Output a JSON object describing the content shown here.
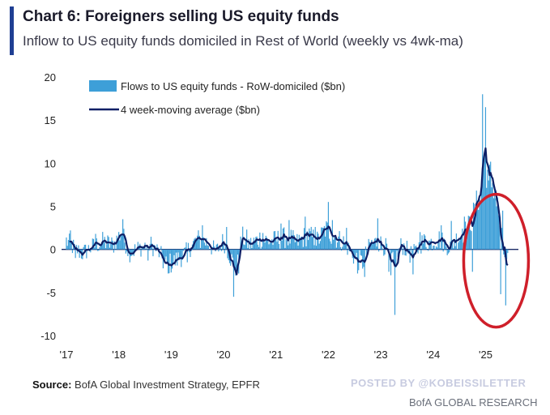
{
  "header": {
    "title": "Chart 6: Foreigners selling US equity funds",
    "subtitle": "Inflow to US equity funds domiciled in Rest of World (weekly vs 4wk-ma)"
  },
  "footer": {
    "source_label": "Source:",
    "source_text": " BofA Global Investment Strategy, EPFR",
    "watermark": "POSTED BY @KOBEISSILETTER",
    "brand": "BofA GLOBAL RESEARCH"
  },
  "colors": {
    "bars": "#3d9fd8",
    "line": "#0d1f66",
    "highlight_circle": "#cf1f2a",
    "accent": "#1f3f93"
  },
  "chart_data": {
    "type": "bar",
    "ylim": [
      -10,
      20
    ],
    "yticks": [
      20,
      15,
      10,
      5,
      0,
      -5,
      -10
    ],
    "xlim": [
      2017.0,
      2025.75
    ],
    "xticks": [
      {
        "label": "'17",
        "x": 2017.0
      },
      {
        "label": "'18",
        "x": 2018.0
      },
      {
        "label": "'19",
        "x": 2019.0
      },
      {
        "label": "'20",
        "x": 2020.0
      },
      {
        "label": "'21",
        "x": 2021.0
      },
      {
        "label": "'22",
        "x": 2022.0
      },
      {
        "label": "'23",
        "x": 2023.0
      },
      {
        "label": "'24",
        "x": 2024.0
      },
      {
        "label": "'25",
        "x": 2025.0
      }
    ],
    "legend": {
      "placement": "top-left"
    },
    "series": [
      {
        "name": "Flows to US equity funds - RoW-domiciled ($bn)",
        "kind": "bar",
        "weekly": true
      },
      {
        "name": "4 week-moving average ($bn)",
        "kind": "line",
        "smoothing": "4-week moving average"
      }
    ],
    "keypoints": [
      [
        2017.0,
        1.0
      ],
      [
        2017.1,
        0.4
      ],
      [
        2017.3,
        -0.5
      ],
      [
        2017.5,
        0.3
      ],
      [
        2017.7,
        0.9
      ],
      [
        2017.9,
        0.5
      ],
      [
        2018.05,
        2.0
      ],
      [
        2018.2,
        -0.4
      ],
      [
        2018.4,
        0.2
      ],
      [
        2018.6,
        0.6
      ],
      [
        2018.75,
        -0.2
      ],
      [
        2018.9,
        -1.8
      ],
      [
        2019.05,
        -1.5
      ],
      [
        2019.25,
        -0.6
      ],
      [
        2019.5,
        1.2
      ],
      [
        2019.7,
        0.8
      ],
      [
        2019.85,
        -0.3
      ],
      [
        2020.0,
        1.0
      ],
      [
        2020.15,
        -1.2
      ],
      [
        2020.25,
        -2.5
      ],
      [
        2020.35,
        1.5
      ],
      [
        2020.5,
        0.5
      ],
      [
        2020.7,
        1.3
      ],
      [
        2020.9,
        0.9
      ],
      [
        2021.05,
        1.2
      ],
      [
        2021.2,
        1.4
      ],
      [
        2021.4,
        0.8
      ],
      [
        2021.6,
        1.7
      ],
      [
        2021.8,
        1.0
      ],
      [
        2021.95,
        2.4
      ],
      [
        2022.1,
        1.5
      ],
      [
        2022.3,
        0.8
      ],
      [
        2022.5,
        -0.9
      ],
      [
        2022.65,
        -1.6
      ],
      [
        2022.8,
        0.6
      ],
      [
        2022.95,
        0.9
      ],
      [
        2023.1,
        0.2
      ],
      [
        2023.25,
        -1.8
      ],
      [
        2023.4,
        0.6
      ],
      [
        2023.6,
        -0.8
      ],
      [
        2023.8,
        0.9
      ],
      [
        2023.95,
        0.8
      ],
      [
        2024.1,
        1.3
      ],
      [
        2024.3,
        0.3
      ],
      [
        2024.5,
        1.5
      ],
      [
        2024.65,
        2.3
      ],
      [
        2024.8,
        4.5
      ],
      [
        2024.9,
        7.0
      ],
      [
        2024.97,
        10.8
      ],
      [
        2025.03,
        9.0
      ],
      [
        2025.1,
        8.5
      ],
      [
        2025.2,
        6.5
      ],
      [
        2025.28,
        2.5
      ],
      [
        2025.35,
        -0.5
      ],
      [
        2025.42,
        -1.5
      ]
    ],
    "weekly_spikes": [
      [
        2017.08,
        2.2
      ],
      [
        2017.18,
        -1.0
      ],
      [
        2017.55,
        1.8
      ],
      [
        2018.08,
        3.5
      ],
      [
        2018.55,
        -1.3
      ],
      [
        2018.85,
        -2.2
      ],
      [
        2018.95,
        -2.8
      ],
      [
        2019.3,
        -1.5
      ],
      [
        2019.6,
        2.8
      ],
      [
        2020.05,
        2.6
      ],
      [
        2020.2,
        -5.5
      ],
      [
        2020.28,
        -2.8
      ],
      [
        2020.45,
        2.3
      ],
      [
        2020.75,
        1.9
      ],
      [
        2021.1,
        3.0
      ],
      [
        2021.25,
        3.4
      ],
      [
        2021.55,
        3.8
      ],
      [
        2021.75,
        2.6
      ],
      [
        2022.0,
        5.5
      ],
      [
        2022.08,
        3.4
      ],
      [
        2022.35,
        2.5
      ],
      [
        2022.55,
        -2.8
      ],
      [
        2022.7,
        -3.2
      ],
      [
        2022.95,
        3.6
      ],
      [
        2023.15,
        -2.6
      ],
      [
        2023.2,
        -3.0
      ],
      [
        2023.27,
        -7.6
      ],
      [
        2023.62,
        -2.9
      ],
      [
        2023.75,
        2.0
      ],
      [
        2023.85,
        1.6
      ],
      [
        2024.15,
        2.8
      ],
      [
        2024.35,
        3.3
      ],
      [
        2024.55,
        2.4
      ],
      [
        2024.6,
        3.8
      ],
      [
        2024.75,
        -2.6
      ],
      [
        2024.9,
        5.5
      ],
      [
        2024.95,
        18.0
      ],
      [
        2025.0,
        16.5
      ],
      [
        2025.05,
        8.0
      ],
      [
        2025.12,
        7.2
      ],
      [
        2025.22,
        5.0
      ],
      [
        2025.28,
        -5.2
      ],
      [
        2025.33,
        4.5
      ],
      [
        2025.38,
        -6.5
      ]
    ],
    "annotation": {
      "type": "circle",
      "around": "2025 selling period",
      "x_center": 2025.2,
      "y_center": 0
    }
  }
}
